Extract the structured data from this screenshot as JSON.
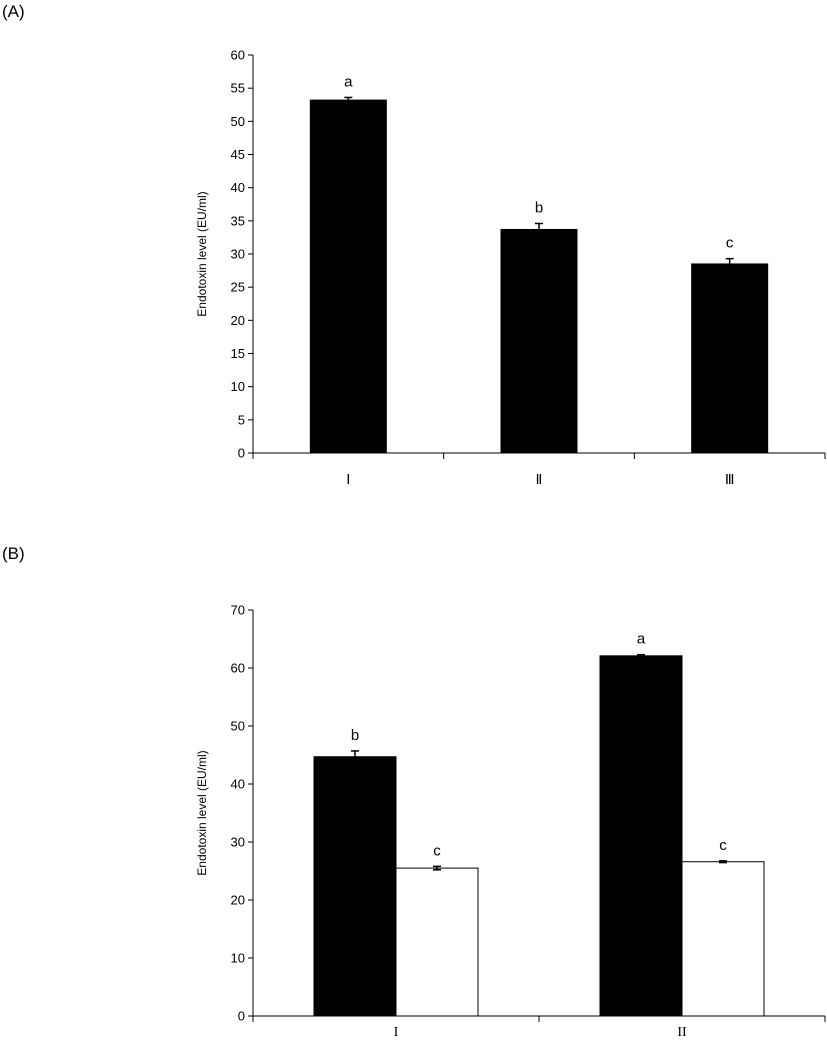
{
  "panels": {
    "a_label": "(A)",
    "b_label": "(B)"
  },
  "chart_data": [
    {
      "type": "bar",
      "panel": "(A)",
      "ylabel": "Endotoxin level (EU/ml)",
      "xlabel": "",
      "ylim": [
        0,
        60
      ],
      "yticks": [
        0,
        5,
        10,
        15,
        20,
        25,
        30,
        35,
        40,
        45,
        50,
        55,
        60
      ],
      "categories": [
        "Ⅰ",
        "Ⅱ",
        "Ⅲ"
      ],
      "series": [
        {
          "color": "#000000",
          "values": [
            53.2,
            33.7,
            28.5
          ],
          "errors": [
            0.4,
            0.9,
            0.8
          ],
          "significance": [
            "a",
            "b",
            "c"
          ]
        }
      ],
      "grid": false,
      "legend": "none"
    },
    {
      "type": "bar",
      "panel": "(B)",
      "ylabel": "Endotoxin level (EU/ml)",
      "xlabel": "",
      "ylim": [
        0,
        70
      ],
      "yticks": [
        0,
        10,
        20,
        30,
        40,
        50,
        60,
        70
      ],
      "categories": [
        "I",
        "II"
      ],
      "series": [
        {
          "color": "#000000",
          "values": [
            44.7,
            62.1
          ],
          "errors": [
            1.0,
            0.2
          ],
          "significance": [
            "b",
            "a"
          ]
        },
        {
          "color": "#ffffff",
          "values": [
            25.5,
            26.6
          ],
          "errors": [
            0.3,
            0.15
          ],
          "significance": [
            "c",
            "c"
          ]
        }
      ],
      "grid": false,
      "legend": "none"
    }
  ]
}
